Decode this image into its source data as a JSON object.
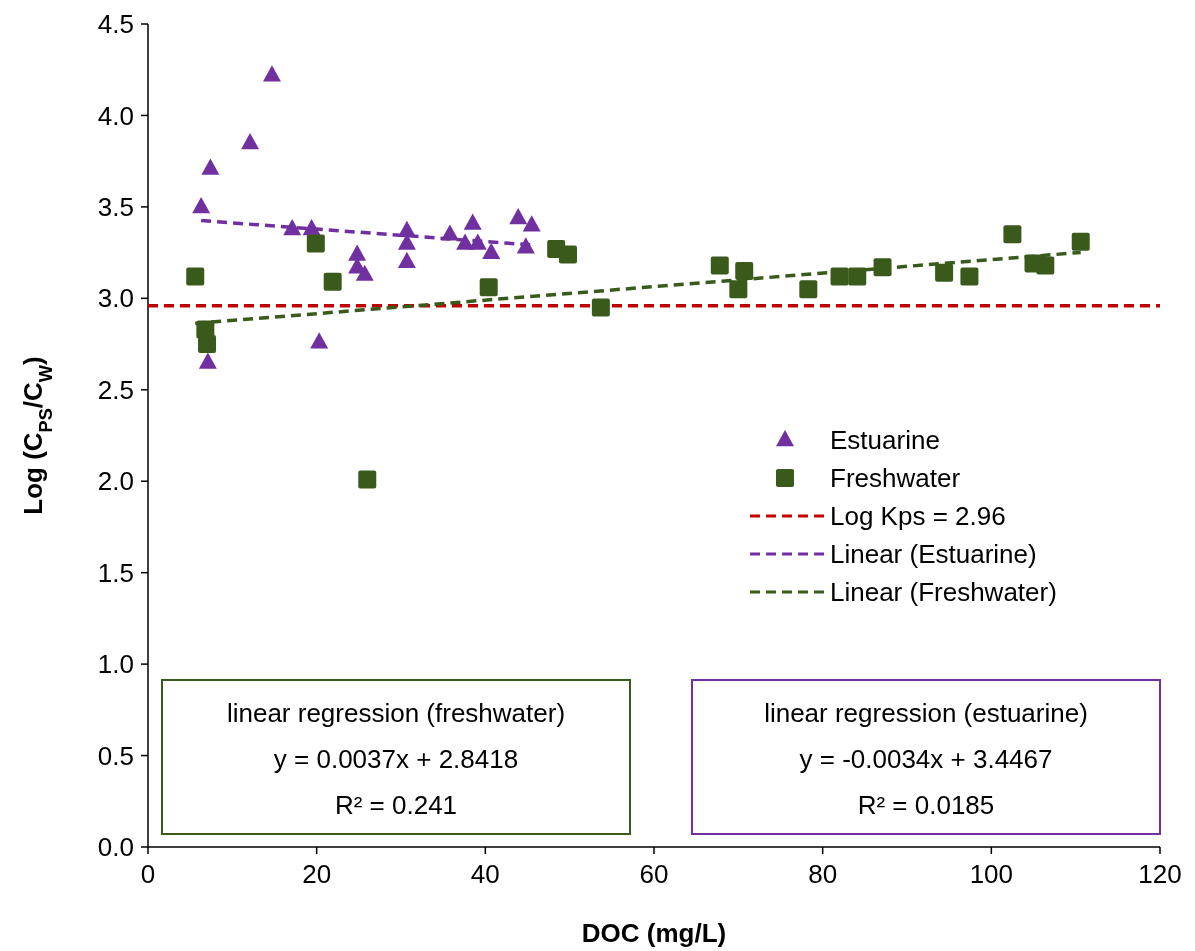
{
  "chart_data": {
    "type": "scatter",
    "xlabel": "DOC (mg/L)",
    "ylabel": "Log (C$_{PS}$/C$_{W}$)",
    "xlim": [
      0,
      120
    ],
    "xticks": [
      0,
      20,
      40,
      60,
      80,
      100,
      120
    ],
    "ylim": [
      0,
      4.5
    ],
    "yticks": [
      {
        "value": 0,
        "label": "0.0"
      },
      {
        "value": 0.5,
        "label": "0.5"
      },
      {
        "value": 1,
        "label": "1.0"
      },
      {
        "value": 1.5,
        "label": "1.5"
      },
      {
        "value": 2,
        "label": "2.0"
      },
      {
        "value": 2.5,
        "label": "2.5"
      },
      {
        "value": 3,
        "label": "3.0"
      },
      {
        "value": 3.5,
        "label": "3.5"
      },
      {
        "value": 4,
        "label": "4.0"
      },
      {
        "value": 4.5,
        "label": "4.5"
      }
    ],
    "grid": false,
    "legend": "right",
    "series": [
      {
        "name": "Estuarine",
        "marker": "triangle",
        "color": "#7030a0",
        "x": [
          14.7,
          12.1,
          7.4,
          6.3,
          17.1,
          19.4,
          24.8,
          24.8,
          25.7,
          30.7,
          30.7,
          30.7,
          35.8,
          38.5,
          37.6,
          39.1,
          40.7,
          43.9,
          45.5,
          44.8,
          20.3,
          7.1
        ],
        "values": [
          4.22,
          3.85,
          3.71,
          3.5,
          3.38,
          3.38,
          3.24,
          3.17,
          3.13,
          3.37,
          3.3,
          3.2,
          3.35,
          3.41,
          3.3,
          3.3,
          3.25,
          3.44,
          3.4,
          3.28,
          2.76,
          2.65
        ]
      },
      {
        "name": "Freshwater",
        "marker": "square",
        "color": "#3a5a1c",
        "x": [
          5.6,
          19.9,
          21.9,
          40.4,
          48.4,
          49.8,
          6.8,
          7.0,
          26.0,
          53.7,
          67.8,
          70.7,
          70.0,
          78.3,
          82.0,
          84.1,
          87.1,
          94.4,
          97.4,
          102.5,
          105.0,
          106.4,
          110.6
        ],
        "values": [
          3.12,
          3.3,
          3.09,
          3.06,
          3.27,
          3.24,
          2.83,
          2.75,
          2.01,
          2.95,
          3.18,
          3.15,
          3.05,
          3.05,
          3.12,
          3.12,
          3.17,
          3.14,
          3.12,
          3.35,
          3.19,
          3.18,
          3.31
        ]
      },
      {
        "name": "Linear (Estuarine)",
        "type": "line",
        "marker": "none",
        "line_style": "dashed",
        "color": "#7030a0",
        "x": [
          6.3,
          45.5
        ],
        "values": [
          3.425,
          3.292
        ]
      },
      {
        "name": "Linear (Freshwater)",
        "type": "line",
        "marker": "none",
        "line_style": "dashed",
        "color": "#3a5a1c",
        "x": [
          5.6,
          110.6
        ],
        "values": [
          2.863,
          3.251
        ]
      }
    ],
    "ref_lines": [
      {
        "axis": "y",
        "value": 2.96,
        "label": "Log Kps = 2.96",
        "color": "#c00000",
        "line_style": "dashed"
      }
    ],
    "annotations": [
      "linear regression (freshwater)\ny = 0.0037x + 2.8418\nR² = 0.241",
      "linear regression (estuarine)\ny = -0.0034x + 3.4467\nR² = 0.0185"
    ]
  }
}
